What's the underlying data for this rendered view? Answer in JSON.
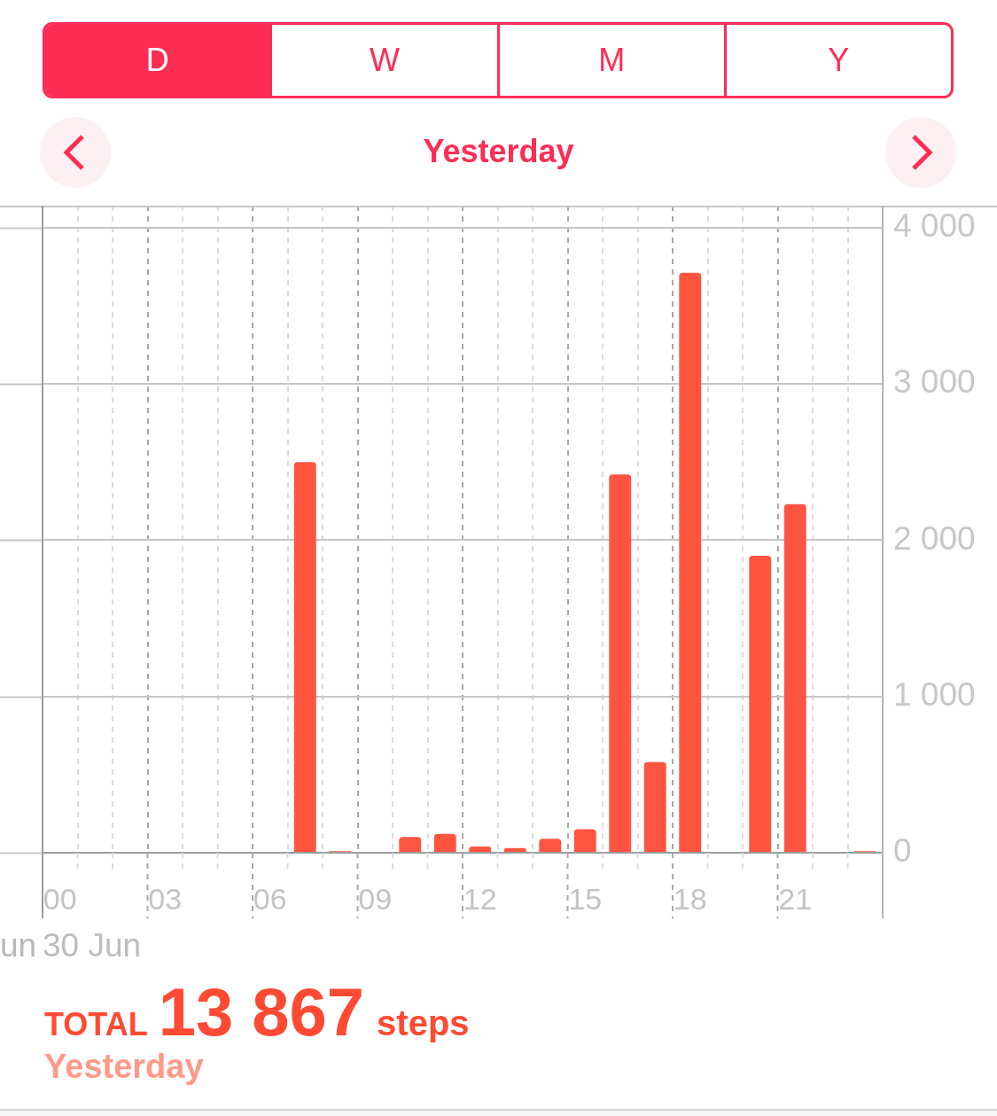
{
  "chart_data": {
    "type": "bar",
    "title": "Yesterday",
    "categories": [
      "00",
      null,
      null,
      "03",
      null,
      null,
      "06",
      null,
      null,
      "09",
      null,
      null,
      "12",
      null,
      null,
      "15",
      null,
      null,
      "18",
      null,
      null,
      "21",
      null,
      null
    ],
    "values": [
      null,
      null,
      null,
      null,
      null,
      null,
      null,
      2500,
      10,
      null,
      100,
      120,
      40,
      30,
      90,
      150,
      2420,
      580,
      3710,
      null,
      1900,
      2230,
      null,
      10
    ],
    "color": "#ff5540",
    "ylim": [
      0,
      4140
    ],
    "yticks": [
      0,
      {
        "value": 1000,
        "label": "1 000"
      },
      {
        "value": 2000,
        "label": "2 000"
      },
      {
        "value": 3000,
        "label": "3 000"
      },
      {
        "value": 4000,
        "label": "4 000"
      }
    ],
    "grid": true,
    "annotations": [
      "D",
      "W",
      "M",
      "Y",
      "un",
      "30 Jun",
      "TOTAL",
      "13 867",
      "steps",
      "Yesterday"
    ]
  }
}
